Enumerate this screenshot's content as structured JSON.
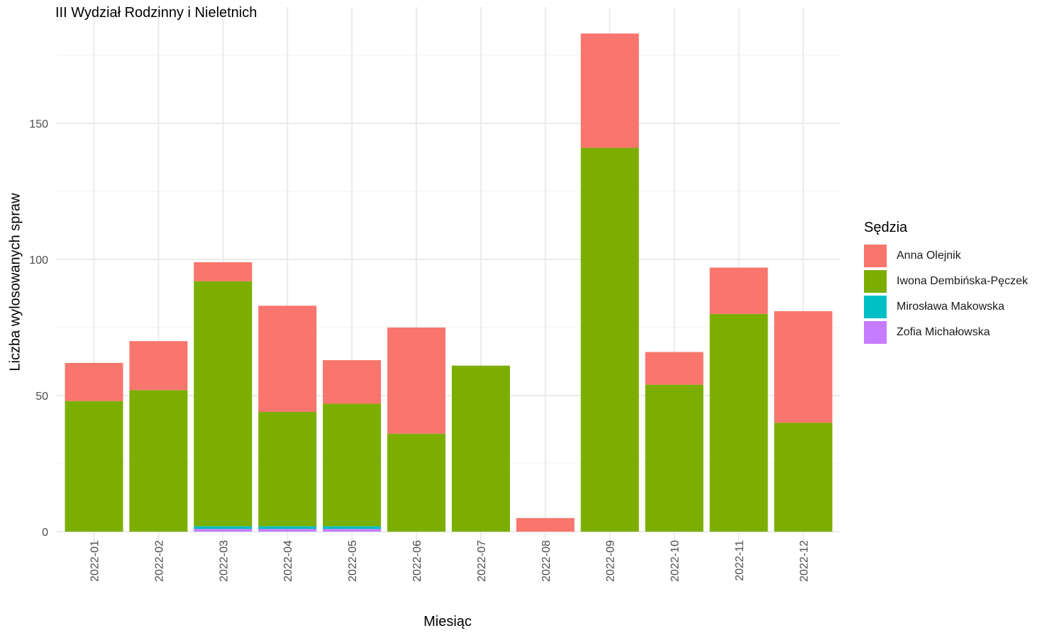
{
  "chart_data": {
    "type": "bar",
    "stacked": true,
    "title": "III Wydział Rodzinny i Nieletnich",
    "xlabel": "Miesiąc",
    "ylabel": "Liczba wylosowanych spraw",
    "ylim": [
      0,
      190
    ],
    "yticks": [
      0,
      50,
      100,
      150
    ],
    "grid": true,
    "legend_title": "Sędzia",
    "legend_position": "right",
    "categories": [
      "2022-01",
      "2022-02",
      "2022-03",
      "2022-04",
      "2022-05",
      "2022-06",
      "2022-07",
      "2022-08",
      "2022-09",
      "2022-10",
      "2022-11",
      "2022-12"
    ],
    "series": [
      {
        "name": "Zofia Michałowska",
        "color": "#C77CFF",
        "values": [
          0,
          0,
          1,
          1,
          1,
          0,
          0,
          0,
          0,
          0,
          0,
          0
        ]
      },
      {
        "name": "Mirosława Makowska",
        "color": "#00BFC4",
        "values": [
          0,
          0,
          1,
          1,
          1,
          0,
          0,
          0,
          0,
          0,
          0,
          0
        ]
      },
      {
        "name": "Iwona Dembińska-Pęczek",
        "color": "#7CAE00",
        "values": [
          48,
          52,
          90,
          42,
          45,
          36,
          61,
          0,
          141,
          54,
          80,
          40
        ]
      },
      {
        "name": "Anna Olejnik",
        "color": "#F8766D",
        "values": [
          14,
          18,
          7,
          39,
          16,
          39,
          0,
          5,
          42,
          12,
          17,
          41
        ]
      }
    ],
    "legend_order": [
      "Anna Olejnik",
      "Iwona Dembińska-Pęczek",
      "Mirosława Makowska",
      "Zofia Michałowska"
    ]
  }
}
